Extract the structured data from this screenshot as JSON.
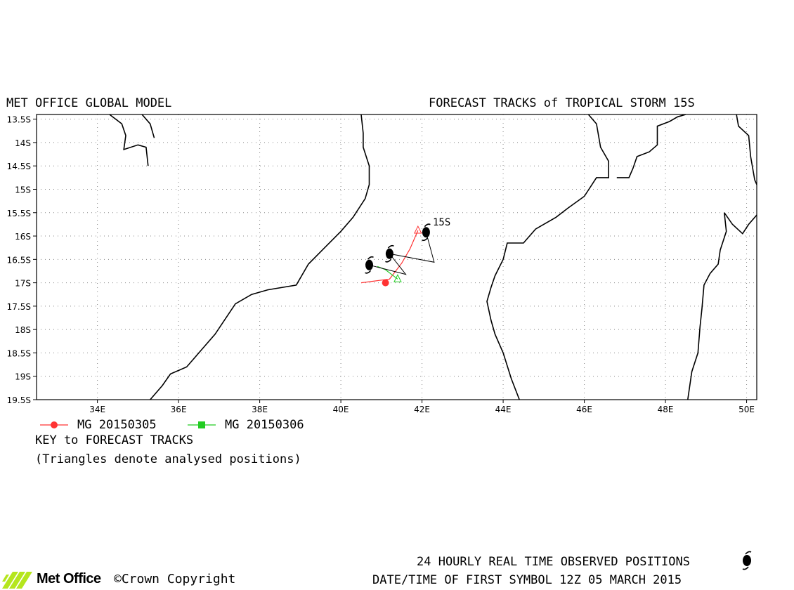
{
  "header": {
    "left_title": "MET OFFICE GLOBAL MODEL",
    "right_title": "FORECAST TRACKS of TROPICAL STORM 15S"
  },
  "map": {
    "storm_label": "15S",
    "lon_range": [
      32.5,
      50.25
    ],
    "lat_range": [
      -19.5,
      -13.4
    ],
    "x_ticks": [
      "34E",
      "36E",
      "38E",
      "40E",
      "42E",
      "44E",
      "46E",
      "48E",
      "50E"
    ],
    "x_tick_values": [
      34,
      36,
      38,
      40,
      42,
      44,
      46,
      48,
      50
    ],
    "y_ticks": [
      "13.5S",
      "14S",
      "14.5S",
      "15S",
      "15.5S",
      "16S",
      "16.5S",
      "17S",
      "17.5S",
      "18S",
      "18.5S",
      "19S",
      "19.5S"
    ],
    "y_tick_values": [
      -13.5,
      -14,
      -14.5,
      -15,
      -15.5,
      -16,
      -16.5,
      -17,
      -17.5,
      -18,
      -18.5,
      -19,
      -19.5
    ],
    "coast_color": "#000000",
    "grid_color": "#888888",
    "observed_track": [
      [
        42.1,
        -15.92
      ],
      [
        42.3,
        -16.56
      ],
      [
        41.2,
        -16.38
      ],
      [
        41.6,
        -16.82
      ],
      [
        40.7,
        -16.62
      ]
    ],
    "observed_symbols": [
      [
        42.1,
        -15.92
      ],
      [
        41.2,
        -16.38
      ],
      [
        40.7,
        -16.62
      ]
    ],
    "coastlines": [
      [
        [
          34.3,
          -13.4
        ],
        [
          34.6,
          -13.6
        ],
        [
          34.7,
          -13.85
        ],
        [
          34.65,
          -14.15
        ],
        [
          35.0,
          -14.05
        ],
        [
          35.2,
          -14.1
        ],
        [
          35.25,
          -14.5
        ]
      ],
      [
        [
          35.1,
          -13.4
        ],
        [
          35.3,
          -13.6
        ],
        [
          35.4,
          -13.9
        ]
      ],
      [
        [
          40.5,
          -13.4
        ],
        [
          40.55,
          -13.8
        ],
        [
          40.55,
          -14.1
        ],
        [
          40.7,
          -14.5
        ],
        [
          40.7,
          -14.9
        ],
        [
          40.6,
          -15.2
        ],
        [
          40.3,
          -15.6
        ],
        [
          40.0,
          -15.9
        ],
        [
          39.6,
          -16.25
        ],
        [
          39.2,
          -16.6
        ],
        [
          38.9,
          -17.05
        ],
        [
          38.2,
          -17.15
        ],
        [
          37.8,
          -17.25
        ],
        [
          37.4,
          -17.45
        ],
        [
          36.9,
          -18.1
        ],
        [
          36.5,
          -18.5
        ],
        [
          36.2,
          -18.8
        ],
        [
          35.8,
          -18.95
        ],
        [
          35.6,
          -19.2
        ],
        [
          35.3,
          -19.5
        ]
      ],
      [
        [
          46.1,
          -13.4
        ],
        [
          46.3,
          -13.6
        ],
        [
          46.4,
          -14.1
        ],
        [
          46.6,
          -14.4
        ],
        [
          46.6,
          -14.75
        ],
        [
          46.3,
          -14.75
        ],
        [
          46.0,
          -15.15
        ],
        [
          45.6,
          -15.4
        ],
        [
          45.3,
          -15.6
        ],
        [
          45.0,
          -15.75
        ],
        [
          44.8,
          -15.85
        ],
        [
          44.6,
          -16.05
        ],
        [
          44.5,
          -16.15
        ],
        [
          44.1,
          -16.15
        ],
        [
          44.0,
          -16.5
        ],
        [
          43.8,
          -16.85
        ],
        [
          43.7,
          -17.1
        ],
        [
          43.6,
          -17.4
        ],
        [
          43.7,
          -17.8
        ],
        [
          43.8,
          -18.1
        ],
        [
          44.0,
          -18.5
        ],
        [
          44.2,
          -19.05
        ],
        [
          44.4,
          -19.5
        ]
      ],
      [
        [
          48.5,
          -13.4
        ],
        [
          48.3,
          -13.45
        ],
        [
          48.1,
          -13.55
        ],
        [
          47.8,
          -13.65
        ],
        [
          47.8,
          -14.05
        ],
        [
          47.6,
          -14.2
        ],
        [
          47.3,
          -14.3
        ],
        [
          47.2,
          -14.55
        ],
        [
          47.1,
          -14.75
        ],
        [
          46.8,
          -14.75
        ]
      ],
      [
        [
          49.75,
          -13.4
        ],
        [
          49.8,
          -13.65
        ],
        [
          50.05,
          -13.85
        ],
        [
          50.1,
          -14.3
        ],
        [
          50.2,
          -14.8
        ],
        [
          50.25,
          -14.9
        ]
      ],
      [
        [
          50.25,
          -15.55
        ],
        [
          50.05,
          -15.75
        ],
        [
          49.9,
          -15.95
        ],
        [
          49.65,
          -15.75
        ],
        [
          49.45,
          -15.5
        ],
        [
          49.5,
          -15.9
        ],
        [
          49.35,
          -16.3
        ],
        [
          49.3,
          -16.6
        ],
        [
          49.1,
          -16.8
        ],
        [
          48.95,
          -17.05
        ],
        [
          48.9,
          -17.55
        ],
        [
          48.85,
          -17.95
        ],
        [
          48.8,
          -18.5
        ],
        [
          48.65,
          -18.9
        ],
        [
          48.6,
          -19.2
        ],
        [
          48.55,
          -19.5
        ]
      ]
    ],
    "forecast_tracks": [
      {
        "name": "MG 20150305",
        "color": "#ff3333",
        "points": [
          [
            41.9,
            -15.88
          ],
          [
            41.7,
            -16.28
          ],
          [
            41.5,
            -16.58
          ],
          [
            41.2,
            -16.92
          ],
          [
            40.5,
            -17.0
          ]
        ],
        "analysed": [
          41.9,
          -15.88
        ],
        "current": [
          41.1,
          -17.0
        ]
      },
      {
        "name": "MG 20150306",
        "color": "#22cc22",
        "points": [
          [
            41.4,
            -16.92
          ],
          [
            41.1,
            -16.72
          ],
          [
            40.9,
            -16.65
          ]
        ],
        "analysed": [
          41.4,
          -16.92
        ]
      }
    ]
  },
  "legend": {
    "items": [
      {
        "label": "MG 20150305",
        "color": "#ff3333",
        "marker": "circle"
      },
      {
        "label": "MG 20150306",
        "color": "#22cc22",
        "marker": "square"
      }
    ],
    "key_title": "KEY to FORECAST TRACKS",
    "triangles_note": "(Triangles denote analysed positions)"
  },
  "footer": {
    "logo_text": "Met Office",
    "copyright": "©Crown Copyright",
    "observed_positions": "24 HOURLY REAL TIME OBSERVED POSITIONS",
    "first_symbol": "DATE/TIME OF FIRST SYMBOL 12Z 05 MARCH 2015"
  }
}
